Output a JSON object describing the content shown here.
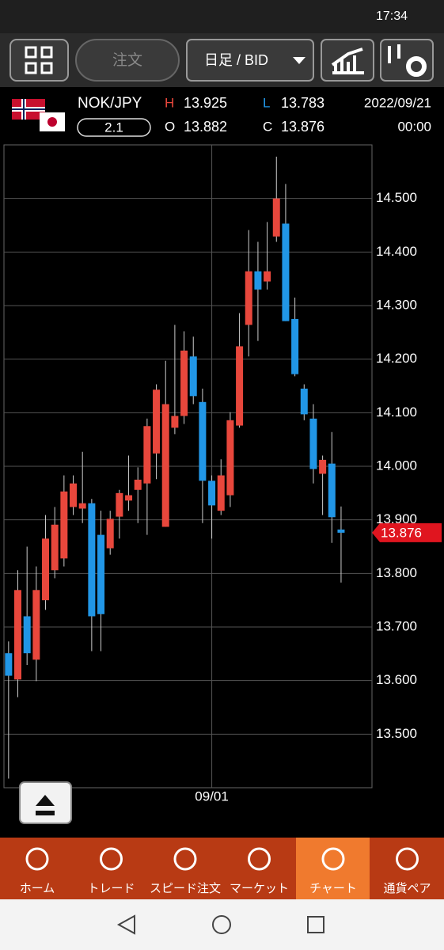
{
  "status_bar": {
    "time": "17:34"
  },
  "toolbar": {
    "order": "注文",
    "timeframe": "日足 / BID"
  },
  "header": {
    "pair": "NOK/JPY",
    "spread": "2.1",
    "high_label": "H",
    "high": "13.925",
    "low_label": "L",
    "low": "13.783",
    "open_label": "O",
    "open": "13.882",
    "close_label": "C",
    "close": "13.876",
    "date": "2022/09/21",
    "time": "00:00"
  },
  "chart_data": {
    "type": "candlestick",
    "categories": [
      null,
      null,
      null,
      null,
      null,
      null,
      null,
      null,
      null,
      null,
      null,
      null,
      null,
      null,
      null,
      null,
      null,
      null,
      null,
      null,
      null,
      null,
      "09/01",
      null,
      null,
      null,
      null,
      null,
      null,
      null,
      null,
      null,
      null,
      null,
      null,
      null,
      null
    ],
    "open": [
      13.651,
      13.602,
      13.72,
      13.639,
      13.75,
      13.806,
      13.828,
      13.924,
      13.921,
      13.931,
      13.872,
      13.847,
      13.906,
      13.936,
      13.956,
      13.968,
      14.024,
      13.887,
      14.072,
      14.094,
      14.205,
      14.12,
      13.973,
      13.917,
      13.946,
      14.076,
      14.264,
      14.364,
      14.345,
      14.429,
      14.453,
      14.275,
      14.145,
      14.089,
      13.986,
      14.005,
      13.882
    ],
    "high": [
      13.673,
      13.806,
      13.85,
      13.813,
      13.909,
      13.924,
      13.983,
      13.983,
      14.027,
      13.939,
      13.917,
      13.917,
      13.956,
      14.02,
      13.998,
      14.089,
      14.153,
      14.197,
      14.264,
      14.252,
      14.242,
      14.145,
      13.983,
      14.013,
      14.101,
      14.286,
      14.441,
      14.419,
      14.456,
      14.578,
      14.527,
      14.315,
      14.153,
      14.116,
      14.02,
      14.064,
      13.925
    ],
    "low": [
      13.417,
      13.569,
      13.629,
      13.599,
      13.732,
      13.791,
      13.813,
      13.909,
      13.894,
      13.655,
      13.655,
      13.835,
      13.865,
      13.917,
      13.894,
      13.872,
      13.976,
      13.887,
      14.06,
      14.079,
      14.116,
      13.894,
      13.865,
      13.909,
      13.924,
      14.072,
      14.205,
      14.234,
      14.33,
      14.419,
      14.271,
      14.168,
      14.086,
      13.968,
      13.909,
      13.857,
      13.783
    ],
    "close": [
      13.609,
      13.769,
      13.651,
      13.769,
      13.865,
      13.891,
      13.953,
      13.968,
      13.931,
      13.72,
      13.724,
      13.902,
      13.95,
      13.946,
      13.975,
      14.075,
      14.143,
      14.116,
      14.094,
      14.216,
      14.131,
      13.973,
      13.927,
      13.983,
      14.086,
      14.224,
      14.364,
      14.33,
      14.364,
      14.5,
      14.271,
      14.172,
      14.097,
      13.995,
      14.012,
      13.905,
      13.876
    ],
    "up_color": "#e8473c",
    "down_color": "#2196e6",
    "ylim": [
      13.4,
      14.6
    ],
    "yticks": [
      {
        "value": 13.5,
        "label": "13.500"
      },
      {
        "value": 13.6,
        "label": "13.600"
      },
      {
        "value": 13.7,
        "label": "13.700"
      },
      {
        "value": 13.8,
        "label": "13.800"
      },
      {
        "value": 13.9,
        "label": "13.900"
      },
      {
        "value": 14.0,
        "label": "14.000"
      },
      {
        "value": 14.1,
        "label": "14.100"
      },
      {
        "value": 14.2,
        "label": "14.200"
      },
      {
        "value": 14.3,
        "label": "14.300"
      },
      {
        "value": 14.4,
        "label": "14.400"
      },
      {
        "value": 14.5,
        "label": "14.500"
      }
    ],
    "grid": true,
    "last_value": 13.876
  },
  "bottom_nav": [
    "ホーム",
    "トレード",
    "スピード注文",
    "マーケット",
    "チャート",
    "通貨ペア"
  ]
}
